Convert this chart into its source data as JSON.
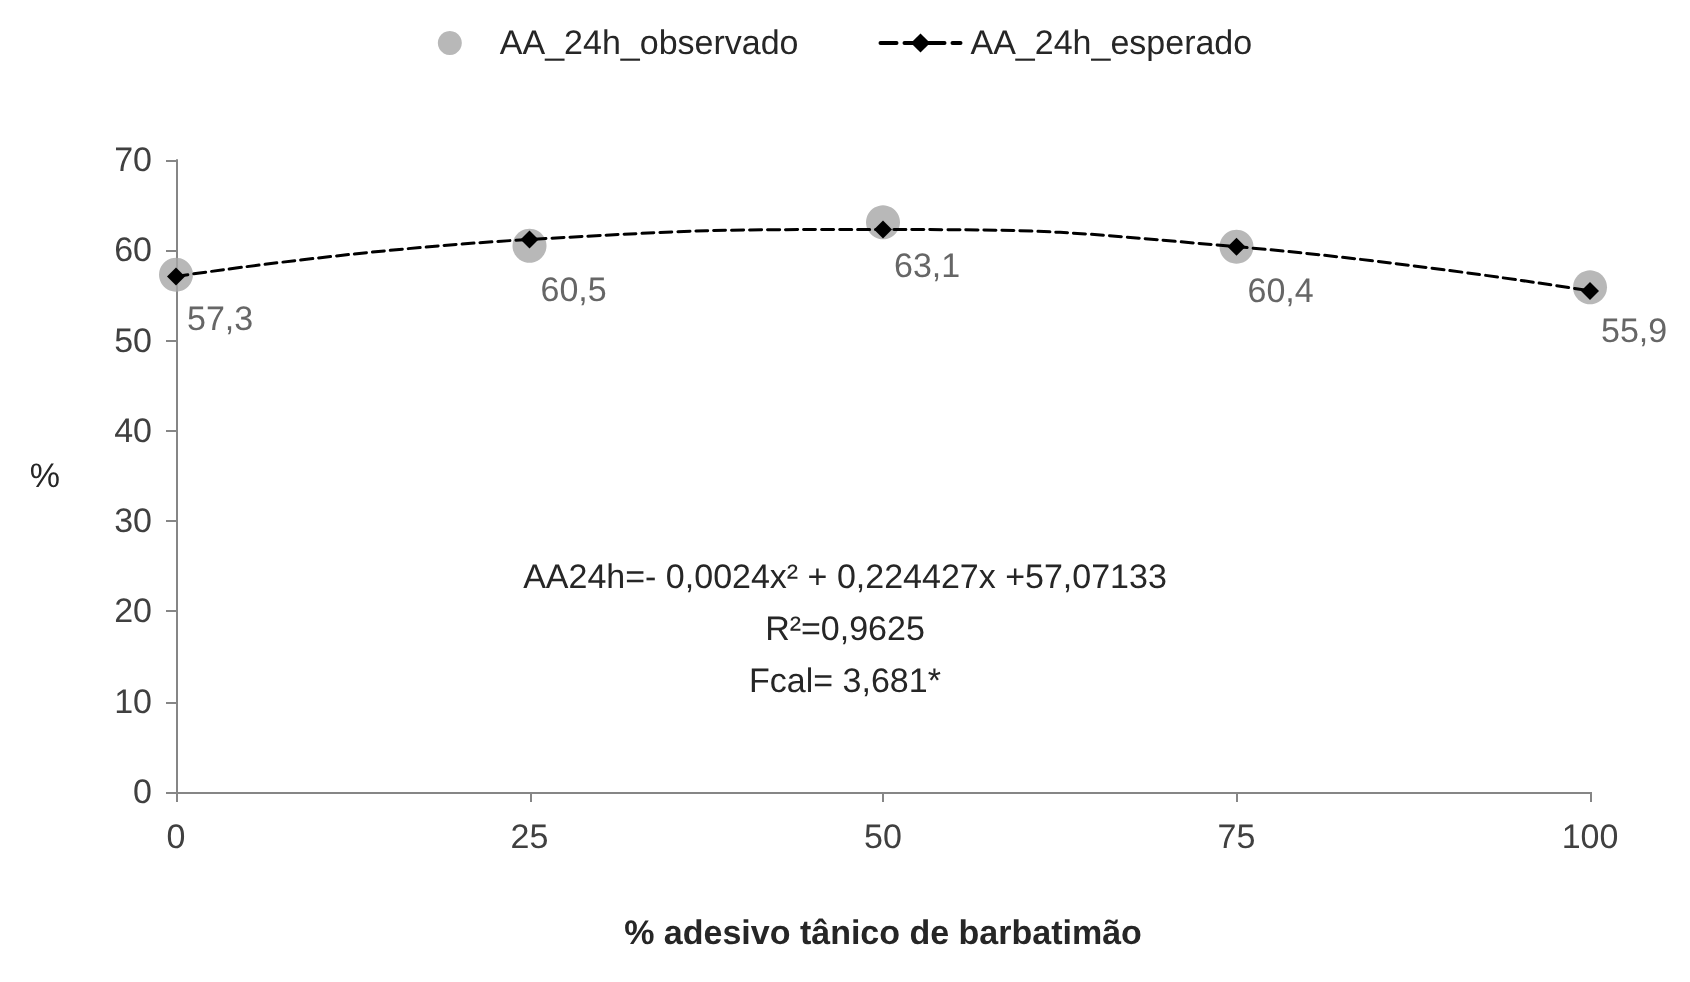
{
  "chart_data": {
    "type": "line",
    "xlabel": "% adesivo tânico de barbatimão",
    "ylabel": "%",
    "x": [
      0,
      25,
      50,
      75,
      100
    ],
    "series": [
      {
        "name": "AA_24h_observado",
        "type": "scatter",
        "color": "#a6a6a6",
        "marker": "circle",
        "values": [
          57.3,
          60.5,
          63.1,
          60.4,
          55.9
        ],
        "value_labels": [
          "57,3",
          "60,5",
          "63,1",
          "60,4",
          "55,9"
        ]
      },
      {
        "name": "AA_24h_esperado",
        "type": "line",
        "color": "#000000",
        "marker": "diamond",
        "line_style": "dashed",
        "values": [
          57.1,
          61.2,
          62.3,
          60.4,
          55.5
        ]
      }
    ],
    "xlim": [
      0,
      100
    ],
    "xticks": [
      0,
      25,
      50,
      75,
      100
    ],
    "ylim": [
      0,
      70
    ],
    "yticks": [
      0,
      10,
      20,
      30,
      40,
      50,
      60,
      70
    ],
    "grid": false,
    "legend": "top",
    "annotations": [
      "AA24h=- 0,0024x² + 0,224427x +57,07133",
      "R²=0,9625",
      "Fcal= 3,681*"
    ]
  }
}
